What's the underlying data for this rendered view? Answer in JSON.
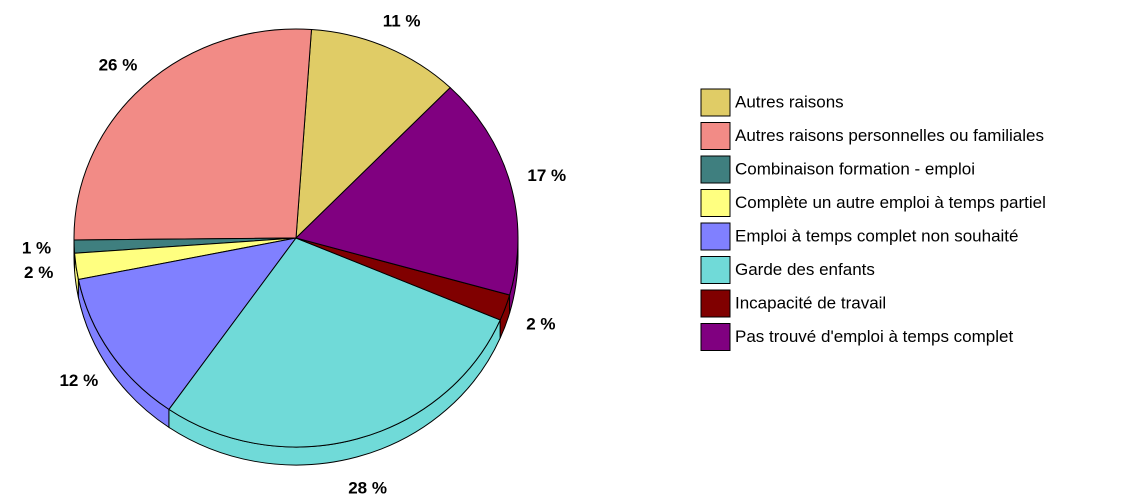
{
  "chart_data": {
    "type": "pie",
    "categories": [
      "Autres raisons",
      "Autres raisons personnelles ou familiales",
      "Combinaison formation - emploi",
      "Complète un autre emploi à temps partiel",
      "Emploi à temps complet non souhaité",
      "Garde des enfants",
      "Incapacité de travail",
      "Pas trouvé d'emploi à temps complet"
    ],
    "values": [
      11,
      26,
      1,
      2,
      12,
      28,
      2,
      17
    ],
    "value_labels": [
      "11 %",
      "26 %",
      "1 %",
      "2 %",
      "12 %",
      "28 %",
      "2 %",
      "17 %"
    ],
    "colors": [
      "#e0cc66",
      "#f28b86",
      "#3f7f7f",
      "#ffff80",
      "#8080ff",
      "#70dad8",
      "#800000",
      "#800080"
    ],
    "legend": "right"
  }
}
